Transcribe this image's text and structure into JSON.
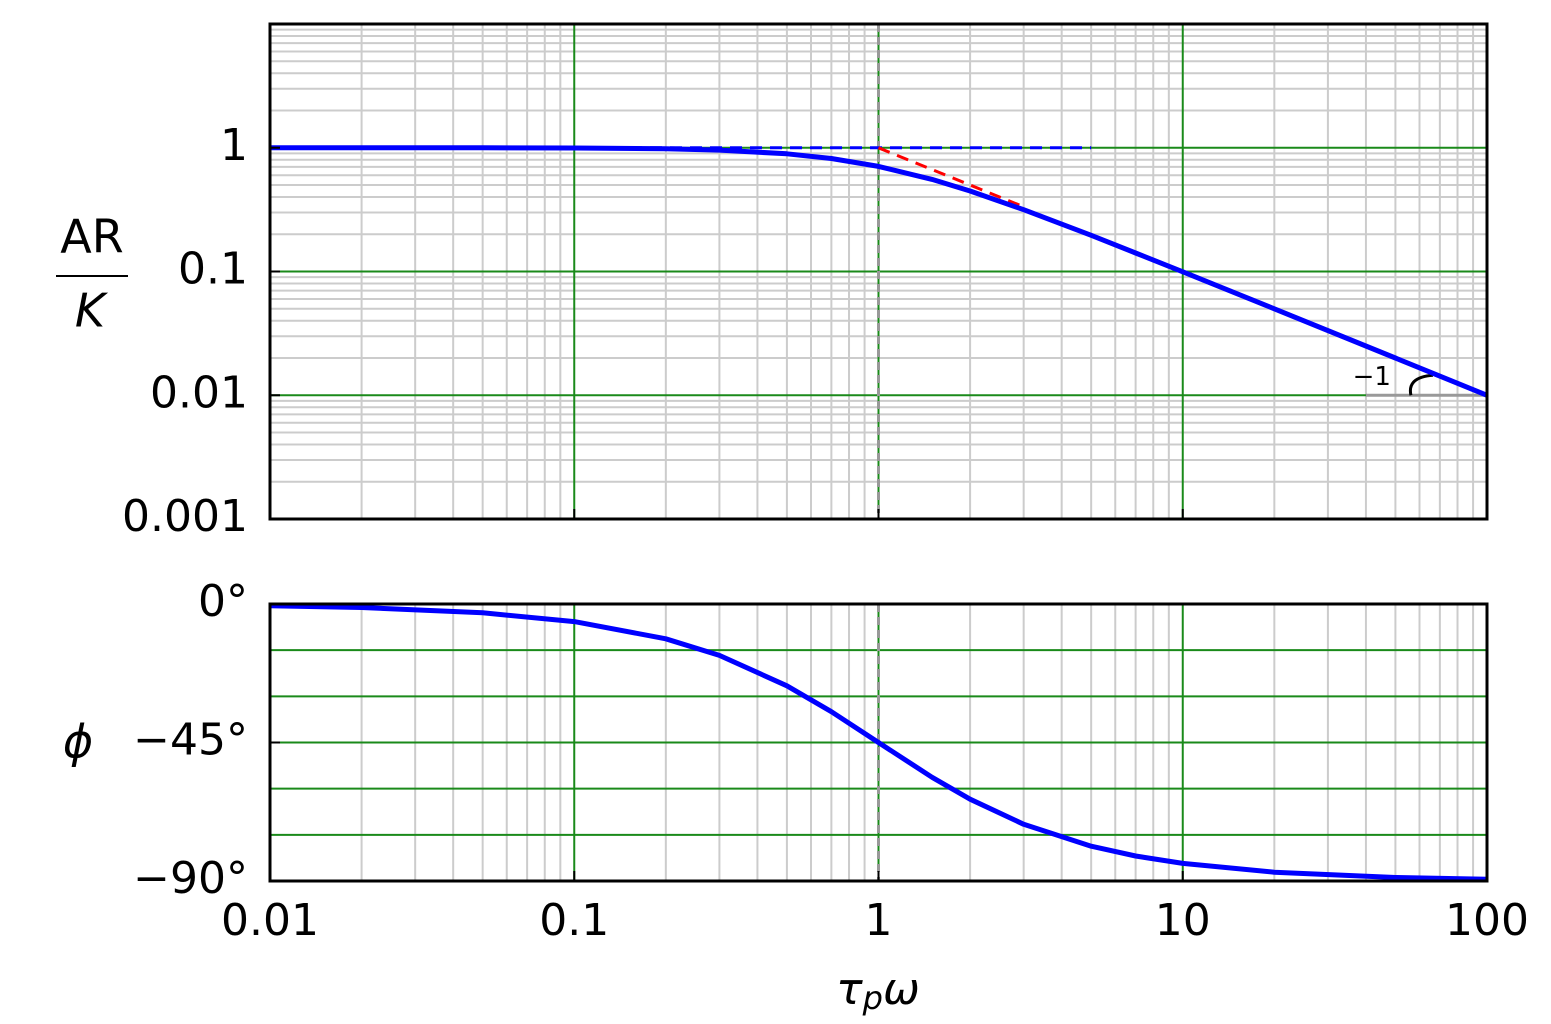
{
  "chart_data": [
    {
      "type": "line",
      "xscale": "log",
      "yscale": "log",
      "xlim": [
        0.01,
        100
      ],
      "xticks": [
        0.01,
        0.1,
        1,
        10,
        100
      ],
      "xtick_labels": false,
      "ylim": [
        0.001,
        10
      ],
      "yticks": [
        0.001,
        0.01,
        0.1,
        1
      ],
      "ylabel_numerator": "AR",
      "ylabel_denominator": "K",
      "grid": true,
      "color": "#0000ff",
      "x": [
        0.01,
        0.02,
        0.05,
        0.1,
        0.2,
        0.3,
        0.5,
        0.7,
        1,
        1.5,
        2,
        3,
        5,
        7,
        10,
        20,
        50,
        100
      ],
      "values": [
        1.0,
        0.9998,
        0.9988,
        0.995,
        0.981,
        0.958,
        0.894,
        0.819,
        0.707,
        0.555,
        0.447,
        0.316,
        0.196,
        0.141,
        0.0995,
        0.05,
        0.02,
        0.01
      ],
      "reference_lines": [
        {
          "x": [
            0.01,
            5
          ],
          "values": [
            1,
            1
          ],
          "color": "#0000ff"
        },
        {
          "x": [
            1,
            3
          ],
          "values": [
            1,
            0.333
          ],
          "color": "#ff0000"
        }
      ],
      "vline": 1,
      "slope": {
        "label": "−1",
        "x": [
          40,
          100
        ],
        "y": 0.01
      }
    },
    {
      "type": "line",
      "xscale": "log",
      "xlim": [
        0.01,
        100
      ],
      "xticks": [
        0.01,
        0.1,
        1,
        10,
        100
      ],
      "xtick_labels": true,
      "ylim": [
        -90,
        0
      ],
      "yticks": [
        {
          "value": -90,
          "label": "−90°"
        },
        {
          "value": -45,
          "label": "−45°"
        },
        {
          "value": 0,
          "label": "0°"
        }
      ],
      "ygrid": [
        -90,
        -75,
        -60,
        -45,
        -30,
        -15,
        0
      ],
      "ylabel": "ϕ",
      "xlabel": {
        "base": "τ",
        "sub": "p",
        "tail": "ω"
      },
      "grid": true,
      "color": "#0000ff",
      "x": [
        0.01,
        0.02,
        0.05,
        0.1,
        0.2,
        0.3,
        0.5,
        0.7,
        1,
        1.5,
        2,
        3,
        5,
        7,
        10,
        20,
        50,
        100
      ],
      "values": [
        -0.57,
        -1.15,
        -2.86,
        -5.71,
        -11.31,
        -16.7,
        -26.57,
        -34.99,
        -45,
        -56.31,
        -63.43,
        -71.57,
        -78.69,
        -81.87,
        -84.29,
        -87.14,
        -88.85,
        -89.43
      ],
      "vline": 1
    }
  ]
}
